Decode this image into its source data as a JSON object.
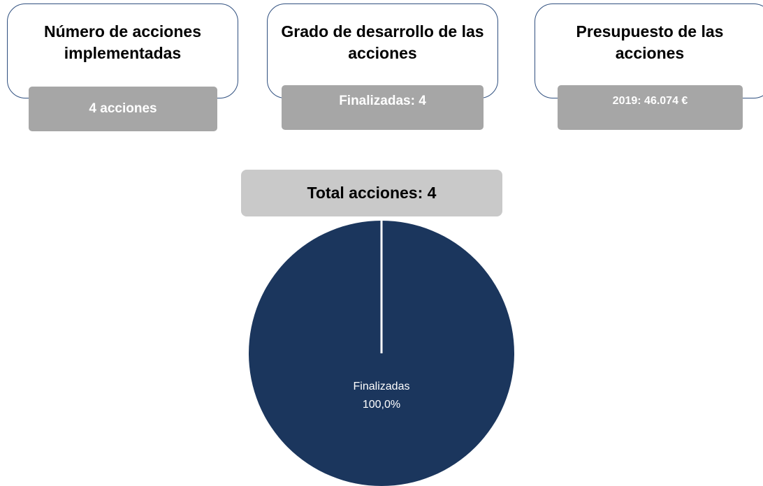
{
  "cards": [
    {
      "title": "Número de acciones implementadas",
      "value": "4 acciones"
    },
    {
      "title": "Grado de desarrollo de las acciones",
      "value": "Finalizadas: 4"
    },
    {
      "title": "Presupuesto de las acciones",
      "value": "2019: 46.074 €"
    }
  ],
  "chart_data": {
    "type": "pie",
    "title": "Total acciones: 4",
    "categories": [
      "Finalizadas"
    ],
    "values": [
      100
    ],
    "value_labels": [
      "100,0%"
    ],
    "colors": [
      "#1b365d"
    ]
  }
}
